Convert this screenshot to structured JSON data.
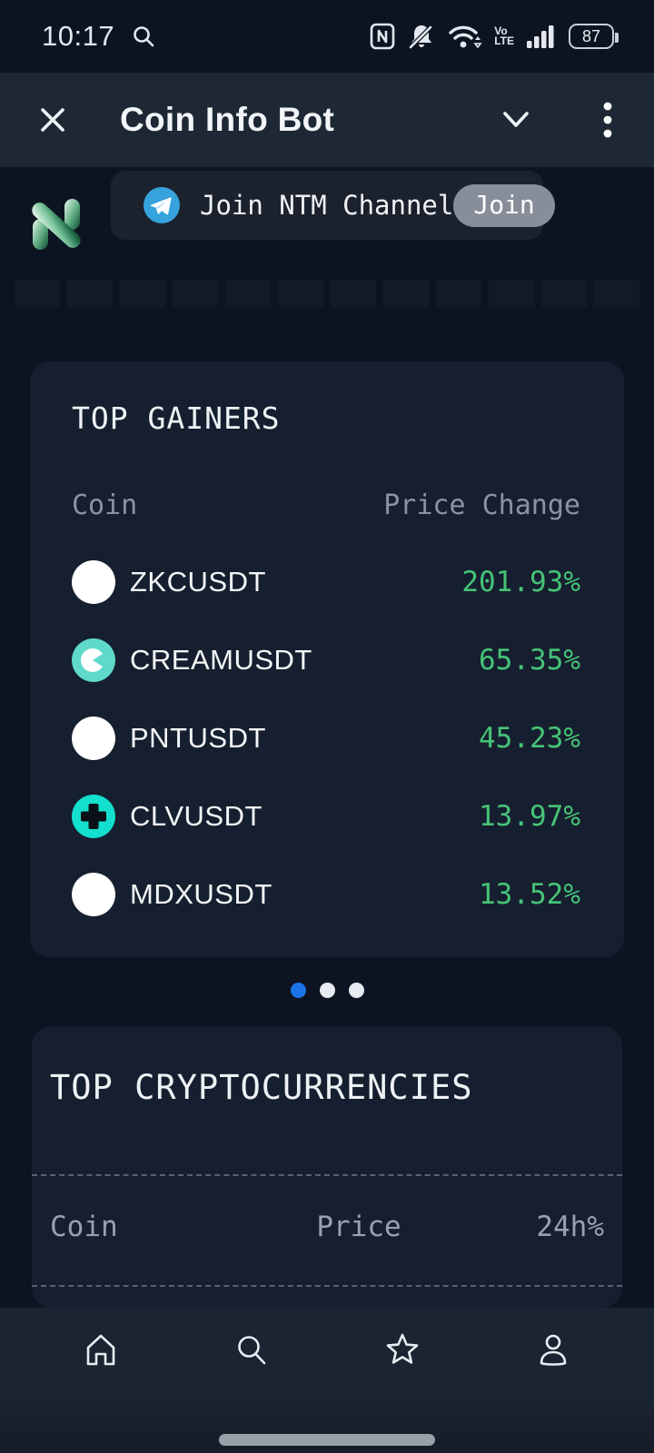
{
  "status_bar": {
    "time": "10:17",
    "volte_top": "Vo",
    "volte_bottom": "LTE",
    "battery_percent": "87"
  },
  "header": {
    "title": "Coin Info Bot"
  },
  "banner": {
    "text": "Join NTM Channel",
    "join_label": "Join"
  },
  "gainers": {
    "title": "TOP GAINERS",
    "columns": {
      "coin": "Coin",
      "change": "Price Change"
    },
    "rows": [
      {
        "name": "ZKCUSDT",
        "change": "201.93%",
        "icon_type": "white"
      },
      {
        "name": "CREAMUSDT",
        "change": "65.35%",
        "icon_type": "cream"
      },
      {
        "name": "PNTUSDT",
        "change": "45.23%",
        "icon_type": "white"
      },
      {
        "name": "CLVUSDT",
        "change": "13.97%",
        "icon_type": "clv"
      },
      {
        "name": "MDXUSDT",
        "change": "13.52%",
        "icon_type": "white"
      }
    ]
  },
  "pagination": {
    "count": 3,
    "active_index": 0
  },
  "crypto": {
    "title": "TOP CRYPTOCURRENCIES",
    "columns": {
      "coin": "Coin",
      "price": "Price",
      "change_24h": "24h%"
    }
  },
  "colors": {
    "background": "#0d1421",
    "header_bg": "#1e2834",
    "card_bg": "#161f2f",
    "gain_green": "#46c377",
    "active_dot_blue": "#1a74e8",
    "telegram_blue": "#36a3dd",
    "cream_teal": "#5fd9ca",
    "clv_cyan": "#12dfce",
    "muted_text": "#8b93a2"
  }
}
